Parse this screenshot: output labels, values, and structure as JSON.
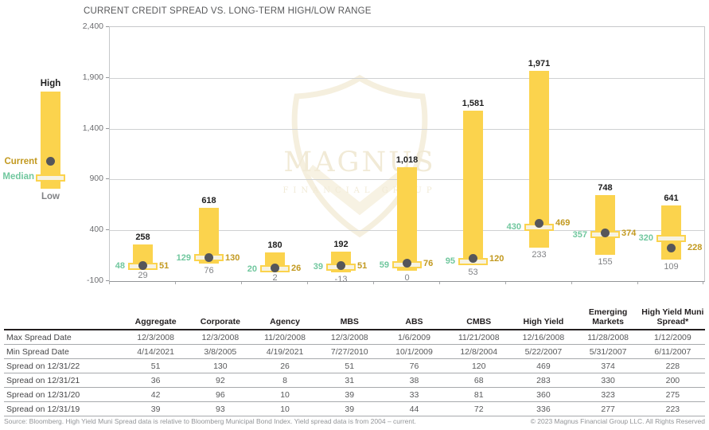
{
  "chart": {
    "title": "CURRENT CREDIT SPREAD VS. LONG-TERM HIGH/LOW RANGE"
  },
  "legend": {
    "high": "High",
    "current": "Current",
    "median": "Median",
    "low": "Low"
  },
  "watermark": {
    "name": "MAGNUS",
    "subtitle": "FINANCIAL GROUP"
  },
  "colors": {
    "bar_yellow": "#FBD34D",
    "stripe_cream": "#F6F2E2",
    "dot_gray": "#55565A",
    "median_green": "#70C79E",
    "current_gold": "#C2991F",
    "low_gray": "#808285",
    "high_black": "#1E1E1E",
    "watermark_cream": "#F5EFDE"
  },
  "chart_data": {
    "type": "bar",
    "title": "CURRENT CREDIT SPREAD VS. LONG-TERM HIGH/LOW RANGE",
    "categories": [
      "Aggregate",
      "Corporate",
      "Agency",
      "MBS",
      "ABS",
      "CMBS",
      "High Yield",
      "Emerging Markets",
      "High Yield Muni Spread*"
    ],
    "series": [
      {
        "name": "High",
        "values": [
          258,
          618,
          180,
          192,
          1018,
          1581,
          1971,
          748,
          641
        ]
      },
      {
        "name": "Low",
        "values": [
          29,
          76,
          2,
          -13,
          0,
          53,
          233,
          155,
          109
        ]
      },
      {
        "name": "Median",
        "values": [
          48,
          129,
          20,
          39,
          59,
          95,
          430,
          357,
          320
        ]
      },
      {
        "name": "Current",
        "values": [
          51,
          130,
          26,
          51,
          76,
          120,
          469,
          374,
          228
        ]
      }
    ],
    "ylim": [
      -100,
      2400
    ],
    "yticks": [
      "2,400",
      "1,900",
      "1,400",
      "900",
      "400",
      "-100"
    ],
    "grid": "horizontal",
    "legend_position": "left"
  },
  "table": {
    "columns": [
      "Aggregate",
      "Corporate",
      "Agency",
      "MBS",
      "ABS",
      "CMBS",
      "High Yield",
      "Emerging Markets",
      "High Yield Muni Spread*"
    ],
    "rows": [
      {
        "label": "Max Spread Date",
        "values": [
          "12/3/2008",
          "12/3/2008",
          "11/20/2008",
          "12/3/2008",
          "1/6/2009",
          "11/21/2008",
          "12/16/2008",
          "11/28/2008",
          "1/12/2009"
        ]
      },
      {
        "label": "Min Spread Date",
        "values": [
          "4/14/2021",
          "3/8/2005",
          "4/19/2021",
          "7/27/2010",
          "10/1/2009",
          "12/8/2004",
          "5/22/2007",
          "5/31/2007",
          "6/11/2007"
        ]
      },
      {
        "label": "Spread on 12/31/22",
        "values": [
          "51",
          "130",
          "26",
          "51",
          "76",
          "120",
          "469",
          "374",
          "228"
        ]
      },
      {
        "label": "Spread on 12/31/21",
        "values": [
          "36",
          "92",
          "8",
          "31",
          "38",
          "68",
          "283",
          "330",
          "200"
        ]
      },
      {
        "label": "Spread on 12/31/20",
        "values": [
          "42",
          "96",
          "10",
          "39",
          "33",
          "81",
          "360",
          "323",
          "275"
        ]
      },
      {
        "label": "Spread on 12/31/19",
        "values": [
          "39",
          "93",
          "10",
          "39",
          "44",
          "72",
          "336",
          "277",
          "223"
        ]
      }
    ]
  },
  "footer": {
    "source": "Source: Bloomberg. High Yield Muni Spread data is relative to Bloomberg Municipal Bond Index. Yield spread data is from 2004 – current.",
    "copyright": "© 2023 Magnus Financial Group LLC. All Rights Reserved"
  }
}
